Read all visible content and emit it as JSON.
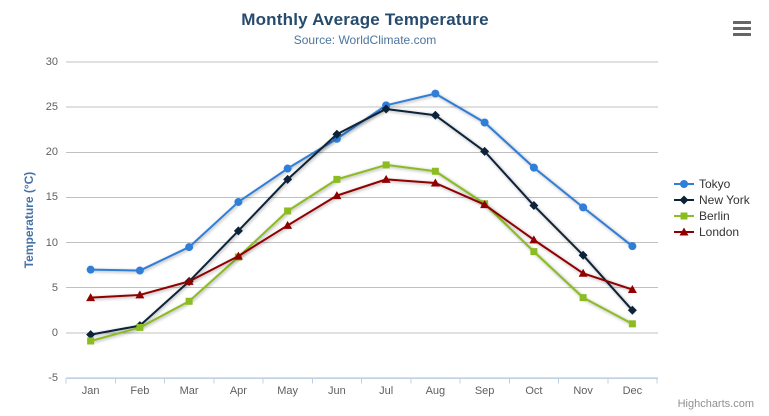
{
  "chart_data": {
    "type": "line",
    "title": "Monthly Average Temperature",
    "subtitle": "Source: WorldClimate.com",
    "categories": [
      "Jan",
      "Feb",
      "Mar",
      "Apr",
      "May",
      "Jun",
      "Jul",
      "Aug",
      "Sep",
      "Oct",
      "Nov",
      "Dec"
    ],
    "series": [
      {
        "name": "Tokyo",
        "color": "#2f7ed8",
        "marker": "circle",
        "values": [
          7.0,
          6.9,
          9.5,
          14.5,
          18.2,
          21.5,
          25.2,
          26.5,
          23.3,
          18.3,
          13.9,
          9.6
        ]
      },
      {
        "name": "New York",
        "color": "#0d233a",
        "marker": "diamond",
        "values": [
          -0.2,
          0.8,
          5.7,
          11.3,
          17.0,
          22.0,
          24.8,
          24.1,
          20.1,
          14.1,
          8.6,
          2.5
        ]
      },
      {
        "name": "Berlin",
        "color": "#8bbc21",
        "marker": "square",
        "values": [
          -0.9,
          0.6,
          3.5,
          8.4,
          13.5,
          17.0,
          18.6,
          17.9,
          14.3,
          9.0,
          3.9,
          1.0
        ]
      },
      {
        "name": "London",
        "color": "#910000",
        "marker": "triangle",
        "values": [
          3.9,
          4.2,
          5.7,
          8.5,
          11.9,
          15.2,
          17.0,
          16.6,
          14.2,
          10.3,
          6.6,
          4.8
        ]
      }
    ],
    "xlabel": "",
    "ylabel": "Temperature (°C)",
    "ylim": [
      -5,
      30
    ],
    "y_ticks": [
      -5,
      0,
      5,
      10,
      15,
      20,
      25,
      30
    ],
    "grid": true,
    "legend_position": "right"
  },
  "credit": "Highcharts.com",
  "colors": {
    "grid": "#c0c0c0",
    "axis_line": "#c0d0e0",
    "tick": "#c0d0e0",
    "axis_label": "#606060",
    "title": "#274b6d",
    "subtitle": "#4d759e",
    "y_axis_title": "#4572a7",
    "legend_text": "#333333",
    "menu_icon": "#666666",
    "credit_text": "#909090"
  }
}
